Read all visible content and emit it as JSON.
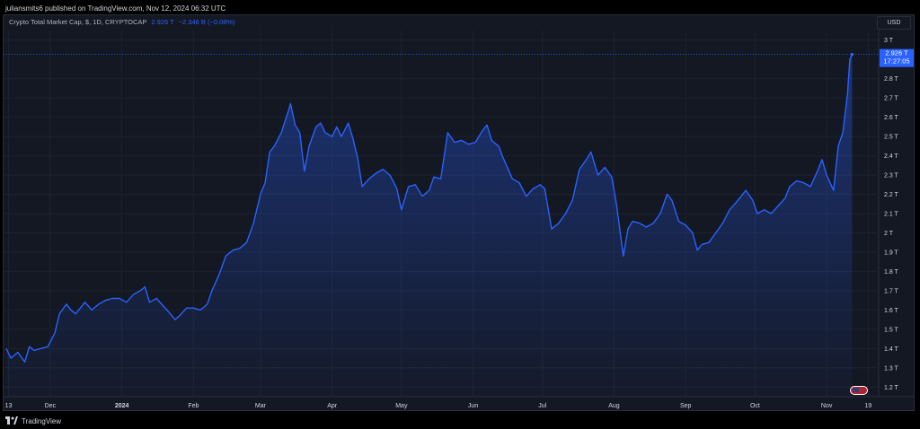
{
  "header": {
    "published_text": "juliansmits6 published on TradingView.com, Nov 12, 2024 06:32 UTC"
  },
  "legend": {
    "symbol": "Crypto Total Market Cap, $, 1D, CRYPTOCAP",
    "last_value": "2.926 T",
    "change": "−2.346 B (−0.08%)"
  },
  "currency_button": "USD",
  "price_label": {
    "value": "2.926 T",
    "countdown": "17:27:05"
  },
  "footer": {
    "brand": "TradingView"
  },
  "colors": {
    "line": "#2962ff",
    "background": "#141823",
    "grid": "#1e2230",
    "text": "#d1d4dc"
  },
  "chart_data": {
    "type": "area",
    "title": "Crypto Total Market Cap, $, 1D, CRYPTOCAP",
    "ylim": [
      1.15,
      3.05
    ],
    "y_ticks": [
      1.2,
      1.3,
      1.4,
      1.5,
      1.6,
      1.7,
      1.8,
      1.9,
      2.0,
      2.1,
      2.2,
      2.3,
      2.4,
      2.5,
      2.6,
      2.7,
      2.8,
      3.0
    ],
    "y_tick_labels": [
      "1.2 T",
      "1.3 T",
      "1.4 T",
      "1.5 T",
      "1.6 T",
      "1.7 T",
      "1.8 T",
      "1.9 T",
      "2 T",
      "2.1 T",
      "2.2 T",
      "2.3 T",
      "2.4 T",
      "2.5 T",
      "2.6 T",
      "2.7 T",
      "2.8 T",
      "3 T"
    ],
    "x_ticks": [
      {
        "date": "2023-11-13",
        "label": "13"
      },
      {
        "date": "2023-12-01",
        "label": "Dec"
      },
      {
        "date": "2024-01-01",
        "label": "2024"
      },
      {
        "date": "2024-02-01",
        "label": "Feb"
      },
      {
        "date": "2024-03-01",
        "label": "Mar"
      },
      {
        "date": "2024-04-01",
        "label": "Apr"
      },
      {
        "date": "2024-05-01",
        "label": "May"
      },
      {
        "date": "2024-06-01",
        "label": "Jun"
      },
      {
        "date": "2024-07-01",
        "label": "Jul"
      },
      {
        "date": "2024-08-01",
        "label": "Aug"
      },
      {
        "date": "2024-09-01",
        "label": "Sep"
      },
      {
        "date": "2024-10-01",
        "label": "Oct"
      },
      {
        "date": "2024-11-01",
        "label": "Nov"
      },
      {
        "date": "2024-11-19",
        "label": "19"
      }
    ],
    "last_value": 2.926,
    "series": [
      {
        "values": [
          [
            "2023-11-12",
            1.4
          ],
          [
            "2023-11-14",
            1.35
          ],
          [
            "2023-11-17",
            1.38
          ],
          [
            "2023-11-20",
            1.33
          ],
          [
            "2023-11-22",
            1.41
          ],
          [
            "2023-11-24",
            1.39
          ],
          [
            "2023-11-27",
            1.4
          ],
          [
            "2023-11-30",
            1.41
          ],
          [
            "2023-12-03",
            1.48
          ],
          [
            "2023-12-05",
            1.58
          ],
          [
            "2023-12-08",
            1.63
          ],
          [
            "2023-12-10",
            1.6
          ],
          [
            "2023-12-12",
            1.58
          ],
          [
            "2023-12-16",
            1.64
          ],
          [
            "2023-12-19",
            1.6
          ],
          [
            "2023-12-22",
            1.63
          ],
          [
            "2023-12-25",
            1.65
          ],
          [
            "2023-12-28",
            1.66
          ],
          [
            "2023-12-31",
            1.66
          ],
          [
            "2024-01-03",
            1.64
          ],
          [
            "2024-01-06",
            1.68
          ],
          [
            "2024-01-09",
            1.7
          ],
          [
            "2024-01-11",
            1.72
          ],
          [
            "2024-01-13",
            1.64
          ],
          [
            "2024-01-16",
            1.66
          ],
          [
            "2024-01-19",
            1.62
          ],
          [
            "2024-01-22",
            1.58
          ],
          [
            "2024-01-24",
            1.55
          ],
          [
            "2024-01-26",
            1.57
          ],
          [
            "2024-01-29",
            1.61
          ],
          [
            "2024-02-01",
            1.61
          ],
          [
            "2024-02-04",
            1.6
          ],
          [
            "2024-02-07",
            1.63
          ],
          [
            "2024-02-09",
            1.7
          ],
          [
            "2024-02-12",
            1.78
          ],
          [
            "2024-02-15",
            1.88
          ],
          [
            "2024-02-18",
            1.91
          ],
          [
            "2024-02-21",
            1.92
          ],
          [
            "2024-02-24",
            1.95
          ],
          [
            "2024-02-27",
            2.05
          ],
          [
            "2024-03-01",
            2.2
          ],
          [
            "2024-03-03",
            2.26
          ],
          [
            "2024-03-05",
            2.42
          ],
          [
            "2024-03-07",
            2.45
          ],
          [
            "2024-03-10",
            2.52
          ],
          [
            "2024-03-13",
            2.63
          ],
          [
            "2024-03-14",
            2.67
          ],
          [
            "2024-03-16",
            2.56
          ],
          [
            "2024-03-18",
            2.52
          ],
          [
            "2024-03-20",
            2.32
          ],
          [
            "2024-03-22",
            2.45
          ],
          [
            "2024-03-25",
            2.55
          ],
          [
            "2024-03-27",
            2.57
          ],
          [
            "2024-03-29",
            2.52
          ],
          [
            "2024-04-01",
            2.5
          ],
          [
            "2024-04-03",
            2.55
          ],
          [
            "2024-04-05",
            2.5
          ],
          [
            "2024-04-08",
            2.57
          ],
          [
            "2024-04-10",
            2.49
          ],
          [
            "2024-04-12",
            2.39
          ],
          [
            "2024-04-14",
            2.24
          ],
          [
            "2024-04-17",
            2.28
          ],
          [
            "2024-04-20",
            2.31
          ],
          [
            "2024-04-23",
            2.33
          ],
          [
            "2024-04-26",
            2.3
          ],
          [
            "2024-04-29",
            2.23
          ],
          [
            "2024-05-01",
            2.12
          ],
          [
            "2024-05-04",
            2.24
          ],
          [
            "2024-05-07",
            2.25
          ],
          [
            "2024-05-10",
            2.19
          ],
          [
            "2024-05-13",
            2.22
          ],
          [
            "2024-05-15",
            2.29
          ],
          [
            "2024-05-18",
            2.28
          ],
          [
            "2024-05-21",
            2.52
          ],
          [
            "2024-05-24",
            2.47
          ],
          [
            "2024-05-27",
            2.48
          ],
          [
            "2024-05-30",
            2.46
          ],
          [
            "2024-06-02",
            2.47
          ],
          [
            "2024-06-05",
            2.53
          ],
          [
            "2024-06-07",
            2.56
          ],
          [
            "2024-06-09",
            2.48
          ],
          [
            "2024-06-12",
            2.45
          ],
          [
            "2024-06-14",
            2.39
          ],
          [
            "2024-06-18",
            2.28
          ],
          [
            "2024-06-21",
            2.26
          ],
          [
            "2024-06-24",
            2.19
          ],
          [
            "2024-06-27",
            2.23
          ],
          [
            "2024-06-30",
            2.25
          ],
          [
            "2024-07-02",
            2.23
          ],
          [
            "2024-07-05",
            2.02
          ],
          [
            "2024-07-08",
            2.05
          ],
          [
            "2024-07-11",
            2.1
          ],
          [
            "2024-07-14",
            2.17
          ],
          [
            "2024-07-17",
            2.33
          ],
          [
            "2024-07-20",
            2.38
          ],
          [
            "2024-07-22",
            2.42
          ],
          [
            "2024-07-25",
            2.3
          ],
          [
            "2024-07-28",
            2.34
          ],
          [
            "2024-07-31",
            2.29
          ],
          [
            "2024-08-02",
            2.15
          ],
          [
            "2024-08-05",
            1.88
          ],
          [
            "2024-08-07",
            2.02
          ],
          [
            "2024-08-09",
            2.06
          ],
          [
            "2024-08-12",
            2.05
          ],
          [
            "2024-08-15",
            2.03
          ],
          [
            "2024-08-18",
            2.05
          ],
          [
            "2024-08-21",
            2.1
          ],
          [
            "2024-08-24",
            2.2
          ],
          [
            "2024-08-26",
            2.17
          ],
          [
            "2024-08-29",
            2.06
          ],
          [
            "2024-09-01",
            2.04
          ],
          [
            "2024-09-04",
            2.0
          ],
          [
            "2024-09-06",
            1.91
          ],
          [
            "2024-09-08",
            1.94
          ],
          [
            "2024-09-11",
            1.95
          ],
          [
            "2024-09-14",
            2.0
          ],
          [
            "2024-09-17",
            2.05
          ],
          [
            "2024-09-20",
            2.12
          ],
          [
            "2024-09-23",
            2.16
          ],
          [
            "2024-09-27",
            2.22
          ],
          [
            "2024-09-30",
            2.17
          ],
          [
            "2024-10-02",
            2.1
          ],
          [
            "2024-10-05",
            2.12
          ],
          [
            "2024-10-08",
            2.1
          ],
          [
            "2024-10-11",
            2.14
          ],
          [
            "2024-10-14",
            2.18
          ],
          [
            "2024-10-16",
            2.24
          ],
          [
            "2024-10-19",
            2.27
          ],
          [
            "2024-10-22",
            2.26
          ],
          [
            "2024-10-25",
            2.24
          ],
          [
            "2024-10-28",
            2.32
          ],
          [
            "2024-10-30",
            2.38
          ],
          [
            "2024-11-01",
            2.3
          ],
          [
            "2024-11-04",
            2.22
          ],
          [
            "2024-11-06",
            2.45
          ],
          [
            "2024-11-08",
            2.52
          ],
          [
            "2024-11-10",
            2.72
          ],
          [
            "2024-11-11",
            2.9
          ],
          [
            "2024-11-12",
            2.926
          ]
        ]
      }
    ]
  }
}
